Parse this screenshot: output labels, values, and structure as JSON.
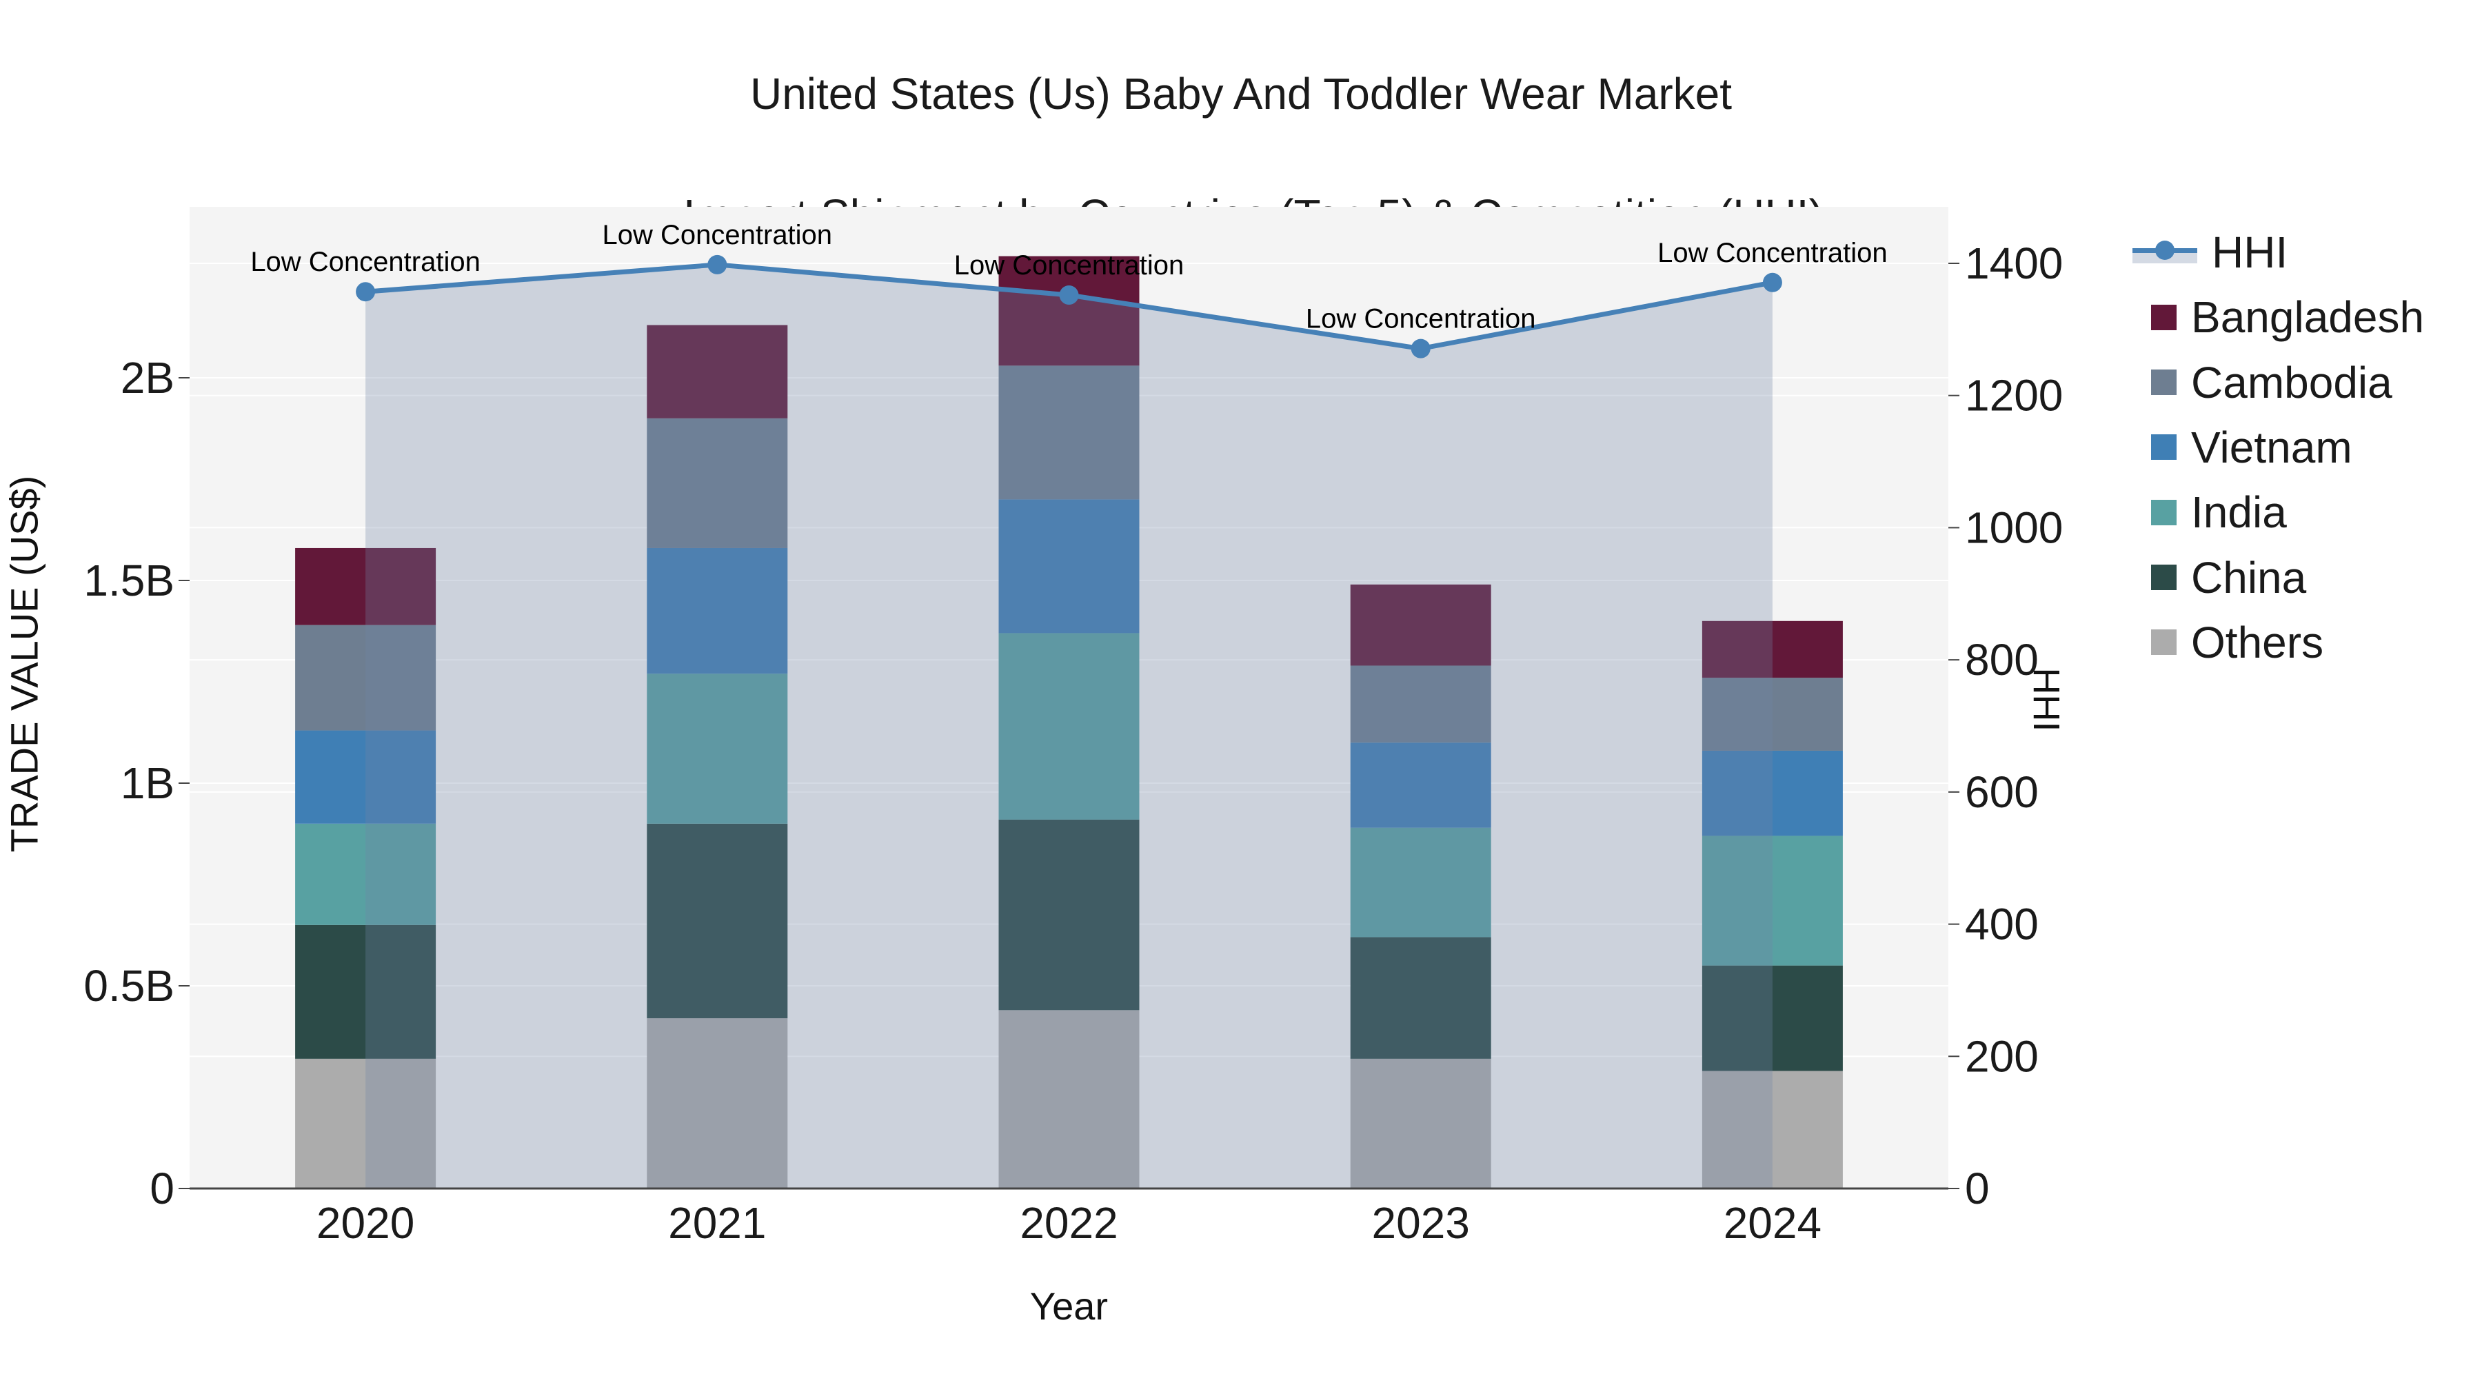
{
  "title": {
    "line1": "United States (Us) Baby And Toddler Wear Market",
    "line2": "Import Shipment by Countries (Top 5) & Competition (HHI)"
  },
  "axes": {
    "x": {
      "title": "Year",
      "categories": [
        "2020",
        "2021",
        "2022",
        "2023",
        "2024"
      ]
    },
    "y_left": {
      "title": "TRADE VALUE (US$)",
      "tick_labels": [
        "0",
        "0.5B",
        "1B",
        "1.5B",
        "2B"
      ],
      "tick_values": [
        0,
        0.5,
        1,
        1.5,
        2
      ]
    },
    "y_right": {
      "title": "HHI",
      "tick_labels": [
        "0",
        "200",
        "400",
        "600",
        "800",
        "1000",
        "1200",
        "1400"
      ],
      "tick_values": [
        0,
        200,
        400,
        600,
        800,
        1000,
        1200,
        1400
      ]
    }
  },
  "legend": {
    "items": [
      {
        "label": "HHI",
        "swatch": "line-area",
        "color": "#4681b7"
      },
      {
        "label": "Bangladesh",
        "swatch": "square",
        "color": "#621839"
      },
      {
        "label": "Cambodia",
        "swatch": "square",
        "color": "#6e7e91"
      },
      {
        "label": "Vietnam",
        "swatch": "square",
        "color": "#3f7fb5"
      },
      {
        "label": "India",
        "swatch": "square",
        "color": "#58a1a2"
      },
      {
        "label": "China",
        "swatch": "square",
        "color": "#2c4b48"
      },
      {
        "label": "Others",
        "swatch": "square",
        "color": "#acacac"
      }
    ]
  },
  "colors": {
    "plot_background": "#f4f4f4",
    "gridline": "#ffffff",
    "axis_line": "#444444",
    "hhi_line": "#4681b7",
    "hhi_area_fill": "rgba(114,134,164,0.30)",
    "text": "#1a1a1a"
  },
  "chart_data": {
    "type": "combo",
    "subtype": "stacked-bar + line (dual axis) with area fill",
    "title": "United States (Us) Baby And Toddler Wear Market Import Shipment by Countries (Top 5) & Competition (HHI)",
    "categories": [
      "2020",
      "2021",
      "2022",
      "2023",
      "2024"
    ],
    "xlabel": "Year",
    "ylabel_left": "TRADE VALUE (US$)",
    "ylabel_right": "HHI",
    "ylim_left_billions": [
      0,
      2.42
    ],
    "ylim_right": [
      0,
      1485
    ],
    "grid": true,
    "legend_position": "right",
    "bar_unit": "billions of US$",
    "bar_stack_order_bottom_to_top": [
      "Others",
      "China",
      "India",
      "Vietnam",
      "Cambodia",
      "Bangladesh"
    ],
    "series": [
      {
        "name": "Others",
        "type": "bar",
        "color": "#acacac",
        "values": [
          0.32,
          0.42,
          0.44,
          0.32,
          0.29
        ]
      },
      {
        "name": "China",
        "type": "bar",
        "color": "#2c4b48",
        "values": [
          0.33,
          0.48,
          0.47,
          0.3,
          0.26
        ]
      },
      {
        "name": "India",
        "type": "bar",
        "color": "#58a1a2",
        "values": [
          0.25,
          0.37,
          0.46,
          0.27,
          0.32
        ]
      },
      {
        "name": "Vietnam",
        "type": "bar",
        "color": "#3f7fb5",
        "values": [
          0.23,
          0.31,
          0.33,
          0.21,
          0.21
        ]
      },
      {
        "name": "Cambodia",
        "type": "bar",
        "color": "#6e7e91",
        "values": [
          0.26,
          0.32,
          0.33,
          0.19,
          0.18
        ]
      },
      {
        "name": "Bangladesh",
        "type": "bar",
        "color": "#621839",
        "values": [
          0.19,
          0.23,
          0.27,
          0.2,
          0.14
        ]
      }
    ],
    "stack_totals_billions": [
      1.58,
      2.13,
      2.3,
      1.49,
      1.4
    ],
    "line_series": {
      "name": "HHI",
      "axis": "right",
      "color": "#4681b7",
      "area_fill": "rgba(114,134,164,0.30)",
      "values": [
        1357,
        1398,
        1352,
        1271,
        1371
      ],
      "point_annotations": [
        "Low Concentration",
        "Low Concentration",
        "Low Concentration",
        "Low Concentration",
        "Low Concentration"
      ]
    }
  }
}
